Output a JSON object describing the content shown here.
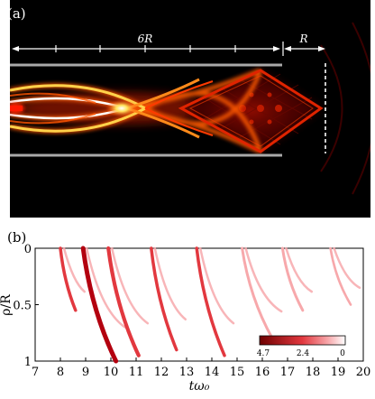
{
  "panel_a": {
    "label": "(a)",
    "dimension_long": "6R",
    "dimension_short": "R"
  },
  "panel_b": {
    "label": "(b)",
    "y_axis_label": "ρ/R",
    "x_axis_label": "tω₀",
    "x_ticks": [
      "7",
      "8",
      "9",
      "10",
      "11",
      "12",
      "13",
      "14",
      "15",
      "16",
      "17",
      "18",
      "19",
      "20"
    ],
    "y_ticks": [
      "0",
      "0.5",
      "1"
    ],
    "colorbar_ticks": [
      "4.7",
      "2.4",
      "0"
    ],
    "colors": {
      "strong": "#b3000f",
      "medium": "#e2383f",
      "weak": "#f7a8ab",
      "colorbar_high": "#6e0000",
      "colorbar_low": "#ffffff"
    }
  },
  "chart_data": {
    "type": "heatmap",
    "xlabel": "tω₀",
    "ylabel": "ρ/R",
    "xlim": [
      7,
      20
    ],
    "ylim": [
      0,
      1
    ],
    "y_inverted": true,
    "colorbar_range": [
      0,
      4.7
    ],
    "streaks": [
      {
        "x_start": 8.0,
        "x_end": 8.6,
        "y_start": 0.0,
        "y_end": 0.55,
        "level": 2.4
      },
      {
        "x_start": 8.9,
        "x_end": 10.2,
        "y_start": 0.0,
        "y_end": 1.0,
        "level": 4.7
      },
      {
        "x_start": 9.9,
        "x_end": 11.1,
        "y_start": 0.0,
        "y_end": 0.95,
        "level": 3.5
      },
      {
        "x_start": 11.6,
        "x_end": 12.6,
        "y_start": 0.0,
        "y_end": 0.9,
        "level": 2.4
      },
      {
        "x_start": 13.4,
        "x_end": 14.5,
        "y_start": 0.0,
        "y_end": 0.95,
        "level": 2.4
      },
      {
        "x_start": 15.2,
        "x_end": 16.4,
        "y_start": 0.0,
        "y_end": 0.8,
        "level": 1.5
      },
      {
        "x_start": 16.8,
        "x_end": 17.6,
        "y_start": 0.0,
        "y_end": 0.55,
        "level": 1.5
      },
      {
        "x_start": 18.7,
        "x_end": 19.5,
        "y_start": 0.0,
        "y_end": 0.5,
        "level": 1.0
      }
    ]
  }
}
